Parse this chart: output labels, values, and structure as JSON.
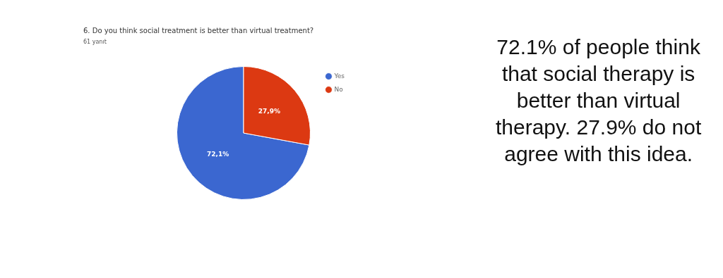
{
  "chart_data": {
    "type": "pie",
    "title": "6. Do you think social treatment is better than virtual treatment?",
    "subtitle": "61 yanıt",
    "categories": [
      "Yes",
      "No"
    ],
    "values": [
      72.1,
      27.9
    ],
    "colors": [
      "#3b67d0",
      "#dc3912"
    ],
    "value_labels": [
      "72,1%",
      "27,9%"
    ],
    "legend": "right",
    "annotations": [
      "72.1% of people think that social therapy is better than virtual therapy. 27.9% do not agree with this idea."
    ]
  }
}
